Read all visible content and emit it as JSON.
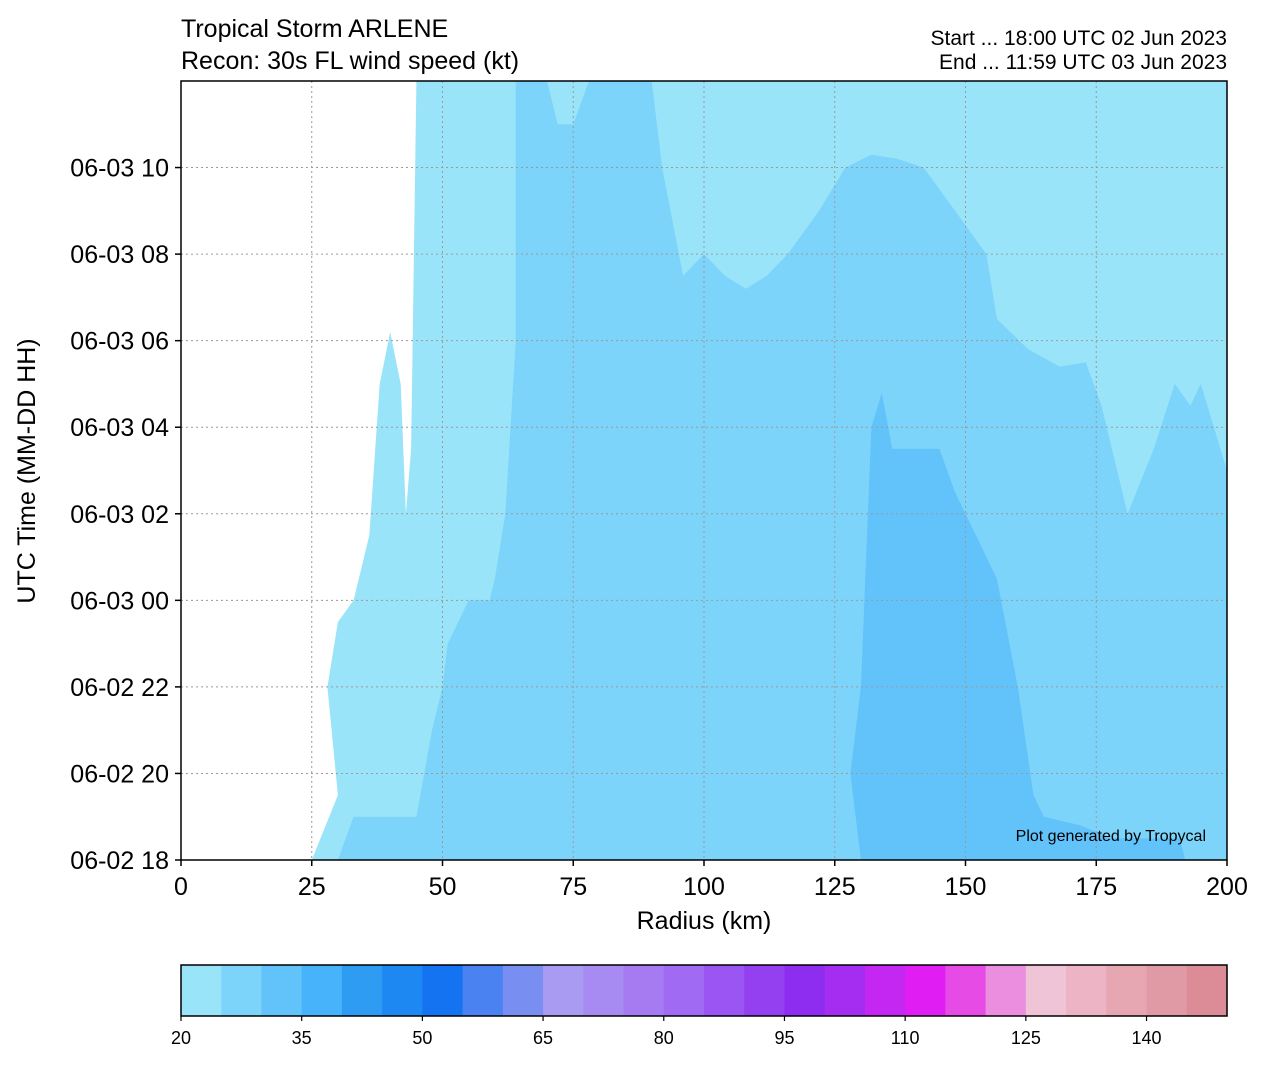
{
  "chart_data": {
    "type": "heatmap",
    "title": "Tropical Storm ARLENE",
    "subtitle": "Recon: 30s FL wind speed (kt)",
    "start_label": "Start ... 18:00 UTC 02 Jun 2023",
    "end_label": "End ... 11:59 UTC 03 Jun 2023",
    "xlabel": "Radius (km)",
    "ylabel": "UTC Time (MM-DD HH)",
    "credit": "Plot generated by Tropycal",
    "xlim": [
      0,
      200
    ],
    "ylim": [
      0,
      18
    ],
    "x_ticks": [
      0,
      25,
      50,
      75,
      100,
      125,
      150,
      175,
      200
    ],
    "y_ticks": [
      {
        "hours": 0,
        "label": "06-02 18"
      },
      {
        "hours": 2,
        "label": "06-02 20"
      },
      {
        "hours": 4,
        "label": "06-02 22"
      },
      {
        "hours": 6,
        "label": "06-03 00"
      },
      {
        "hours": 8,
        "label": "06-03 02"
      },
      {
        "hours": 10,
        "label": "06-03 04"
      },
      {
        "hours": 12,
        "label": "06-03 06"
      },
      {
        "hours": 14,
        "label": "06-03 08"
      },
      {
        "hours": 16,
        "label": "06-03 10"
      }
    ],
    "grid": true,
    "contour_levels": [
      {
        "name": "20-25 kt",
        "color": "#9ae4fa",
        "outline": [
          [
            25,
            0
          ],
          [
            30,
            1.5
          ],
          [
            28,
            4
          ],
          [
            30,
            5.5
          ],
          [
            33,
            6
          ],
          [
            36,
            7.5
          ],
          [
            38,
            11
          ],
          [
            40,
            12.2
          ],
          [
            42,
            11
          ],
          [
            43,
            8
          ],
          [
            44,
            9.5
          ],
          [
            45,
            18
          ],
          [
            200,
            18
          ],
          [
            200,
            0
          ]
        ]
      },
      {
        "name": "25-30 kt",
        "color": "#7dd4fa",
        "outline": [
          [
            30,
            0
          ],
          [
            33,
            1
          ],
          [
            45,
            1
          ],
          [
            48,
            3
          ],
          [
            50,
            4
          ],
          [
            51,
            5
          ],
          [
            55,
            6
          ],
          [
            59,
            6
          ],
          [
            60,
            6.5
          ],
          [
            62,
            8
          ],
          [
            64,
            12
          ],
          [
            64,
            18
          ],
          [
            70,
            18
          ],
          [
            72,
            17
          ],
          [
            75,
            17
          ],
          [
            78,
            18
          ],
          [
            90,
            18
          ],
          [
            92,
            16
          ],
          [
            96,
            13.5
          ],
          [
            100,
            14
          ],
          [
            104,
            13.5
          ],
          [
            108,
            13.2
          ],
          [
            112,
            13.5
          ],
          [
            116,
            14
          ],
          [
            122,
            15
          ],
          [
            127,
            16
          ],
          [
            132,
            16.3
          ],
          [
            137,
            16.2
          ],
          [
            142,
            16
          ],
          [
            148,
            15
          ],
          [
            154,
            14
          ],
          [
            156,
            12.5
          ],
          [
            162,
            11.8
          ],
          [
            168,
            11.4
          ],
          [
            173,
            11.5
          ],
          [
            176,
            10.5
          ],
          [
            181,
            8
          ],
          [
            186,
            9.5
          ],
          [
            190,
            11
          ],
          [
            193,
            10.5
          ],
          [
            195,
            11
          ],
          [
            200,
            9
          ],
          [
            200,
            0
          ]
        ]
      },
      {
        "name": "30-35 kt",
        "color": "#62c3fb",
        "outline": [
          [
            130,
            0
          ],
          [
            128,
            2
          ],
          [
            130,
            4
          ],
          [
            131,
            7
          ],
          [
            132,
            10
          ],
          [
            134,
            10.8
          ],
          [
            136,
            9.5
          ],
          [
            140,
            9.5
          ],
          [
            143,
            9.5
          ],
          [
            145,
            9.5
          ],
          [
            148,
            8.5
          ],
          [
            152,
            7.5
          ],
          [
            156,
            6.5
          ],
          [
            160,
            4
          ],
          [
            163,
            1.5
          ],
          [
            165,
            1
          ],
          [
            172,
            0.8
          ],
          [
            178,
            0.5
          ],
          [
            191,
            0.5
          ],
          [
            192,
            0
          ]
        ]
      }
    ],
    "colorbar": {
      "min": 20,
      "max": 150,
      "step": 5,
      "tick_values": [
        20,
        35,
        50,
        65,
        80,
        95,
        110,
        125,
        140
      ],
      "colors": [
        "#9ae4fa",
        "#7dd4fa",
        "#62c3fb",
        "#47b3fa",
        "#2e9cf3",
        "#1e88f2",
        "#1473f0",
        "#4a82f2",
        "#788ef1",
        "#a99bf2",
        "#a88bf2",
        "#a67bf2",
        "#a06af2",
        "#9a55f2",
        "#9440f0",
        "#8e2cef",
        "#a52df2",
        "#c327f1",
        "#e01ef4",
        "#e64be6",
        "#eb8ee0",
        "#f0c4d7",
        "#ecb4c4",
        "#e6a6b2",
        "#e09aa5",
        "#db8c96"
      ]
    }
  }
}
